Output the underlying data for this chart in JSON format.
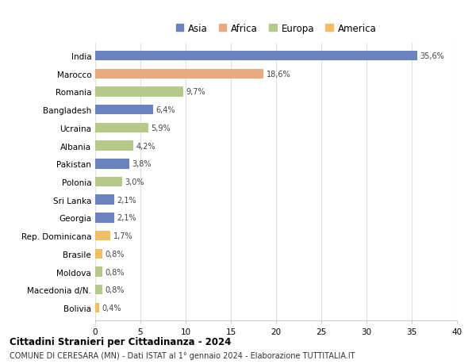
{
  "countries": [
    "India",
    "Marocco",
    "Romania",
    "Bangladesh",
    "Ucraina",
    "Albania",
    "Pakistan",
    "Polonia",
    "Sri Lanka",
    "Georgia",
    "Rep. Dominicana",
    "Brasile",
    "Moldova",
    "Macedonia d/N.",
    "Bolivia"
  ],
  "values": [
    35.6,
    18.6,
    9.7,
    6.4,
    5.9,
    4.2,
    3.8,
    3.0,
    2.1,
    2.1,
    1.7,
    0.8,
    0.8,
    0.8,
    0.4
  ],
  "labels": [
    "35,6%",
    "18,6%",
    "9,7%",
    "6,4%",
    "5,9%",
    "4,2%",
    "3,8%",
    "3,0%",
    "2,1%",
    "2,1%",
    "1,7%",
    "0,8%",
    "0,8%",
    "0,8%",
    "0,4%"
  ],
  "continents": [
    "Asia",
    "Africa",
    "Europa",
    "Asia",
    "Europa",
    "Europa",
    "Asia",
    "Europa",
    "Asia",
    "Asia",
    "America",
    "America",
    "Europa",
    "Europa",
    "America"
  ],
  "colors": {
    "Asia": "#6b83bd",
    "Africa": "#e8a97e",
    "Europa": "#b5c98a",
    "America": "#f0c060"
  },
  "legend_order": [
    "Asia",
    "Africa",
    "Europa",
    "America"
  ],
  "title": "Cittadini Stranieri per Cittadinanza - 2024",
  "subtitle": "COMUNE DI CERESARA (MN) - Dati ISTAT al 1° gennaio 2024 - Elaborazione TUTTITALIA.IT",
  "xlim": [
    0,
    40
  ],
  "xticks": [
    0,
    5,
    10,
    15,
    20,
    25,
    30,
    35,
    40
  ],
  "bg_color": "#ffffff",
  "grid_color": "#e0e0e0",
  "bar_height": 0.55
}
